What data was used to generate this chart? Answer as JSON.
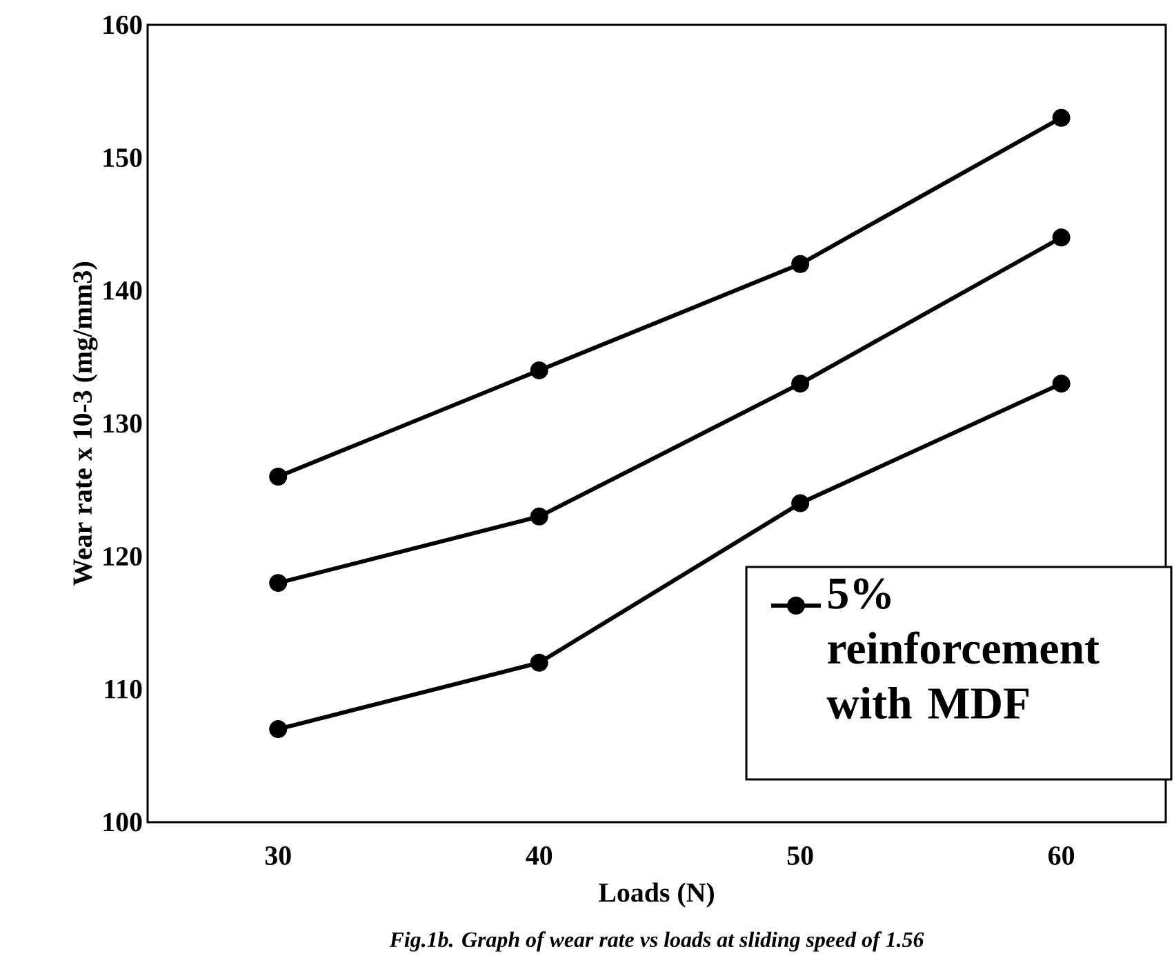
{
  "chart_data": {
    "type": "line",
    "xlabel": "Loads (N)",
    "ylabel": "Wear rate x 10-3 (mg/mm3)",
    "categories": [
      "30",
      "40",
      "50",
      "60"
    ],
    "series": [
      {
        "name": "5% reinforcement with MDF",
        "color": "#000000",
        "values": [
          126,
          134,
          142,
          153
        ]
      },
      {
        "color": "#000000",
        "values": [
          118,
          123,
          133,
          144
        ]
      },
      {
        "color": "#000000",
        "values": [
          107,
          112,
          124,
          133
        ]
      }
    ],
    "ylim": [
      100,
      160
    ],
    "yticks": [
      100,
      110,
      120,
      130,
      140,
      150,
      160
    ],
    "marker": "circle",
    "line_style": "solid",
    "grid": false,
    "legend": "bottom right",
    "annotations": [
      "Fig.1b. Graph of wear rate vs loads at sliding speed of 1.56"
    ]
  }
}
